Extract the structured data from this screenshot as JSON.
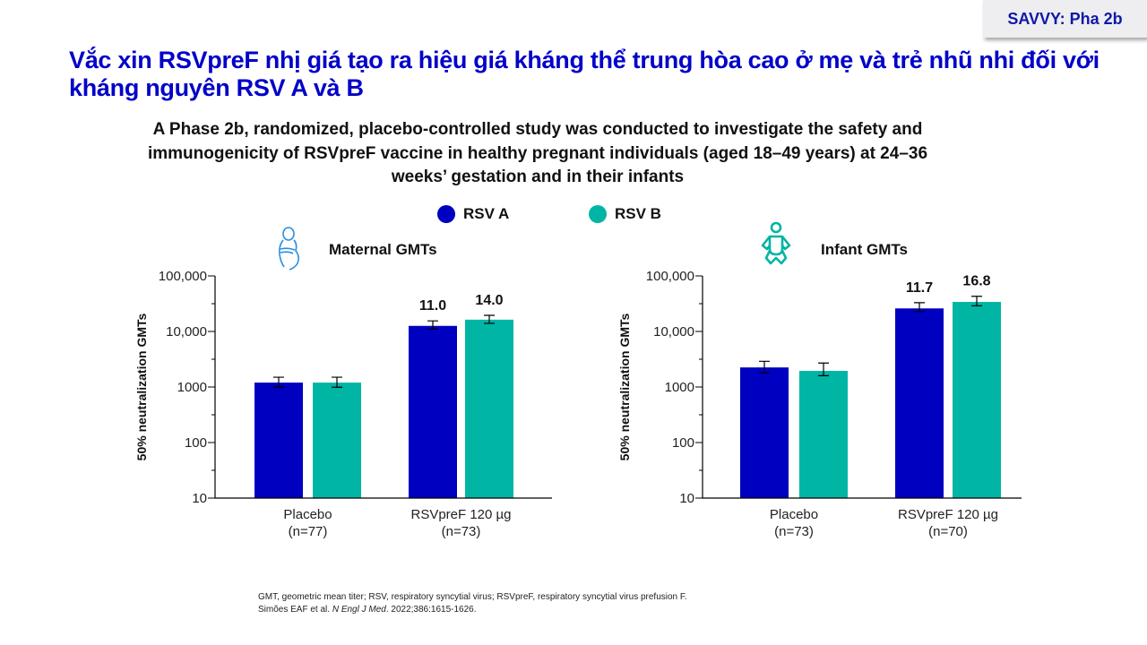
{
  "badge": "SAVVY: Pha 2b",
  "title": "Vắc xin RSVpreF nhị giá tạo ra hiệu giá kháng thể trung hòa cao ở mẹ và trẻ nhũ nhi đối với kháng nguyên RSV A và B",
  "subtitle": "A Phase 2b, randomized, placebo-controlled study was conducted to investigate the safety and immunogenicity of RSVpreF vaccine in healthy pregnant individuals (aged 18–49 years) at 24–36 weeks’ gestation and in their infants",
  "legend": [
    {
      "label": "RSV A",
      "color": "#0000c0"
    },
    {
      "label": "RSV B",
      "color": "#00b5a4"
    }
  ],
  "icons": {
    "maternal": "pregnant-woman-icon",
    "infant": "baby-icon"
  },
  "chart_data": [
    {
      "type": "bar",
      "title": "Maternal GMTs",
      "ylabel": "50% neutralization GMTs",
      "yscale": "log",
      "ylim": [
        10,
        100000
      ],
      "yticks": [
        "10",
        "100",
        "1000",
        "10,000",
        "100,000"
      ],
      "categories": [
        {
          "name": "Placebo",
          "n": "(n=77)"
        },
        {
          "name": "RSVpreF 120 µg",
          "n": "(n=73)"
        }
      ],
      "series": [
        {
          "name": "RSV A",
          "values": [
            1200,
            12600
          ],
          "error_low": [
            1000,
            11000
          ],
          "error_high": [
            1500,
            15500
          ],
          "labels": [
            "",
            "11.0"
          ]
        },
        {
          "name": "RSV B",
          "values": [
            1200,
            16300
          ],
          "error_low": [
            990,
            14000
          ],
          "error_high": [
            1500,
            19500
          ],
          "labels": [
            "",
            "14.0"
          ]
        }
      ]
    },
    {
      "type": "bar",
      "title": "Infant GMTs",
      "ylabel": "50% neutralization GMTs",
      "yscale": "log",
      "ylim": [
        10,
        100000
      ],
      "yticks": [
        "10",
        "100",
        "1000",
        "10,000",
        "100,000"
      ],
      "categories": [
        {
          "name": "Placebo",
          "n": "(n=73)"
        },
        {
          "name": "RSVpreF 120 µg",
          "n": "(n=70)"
        }
      ],
      "series": [
        {
          "name": "RSV A",
          "values": [
            2250,
            26000
          ],
          "error_low": [
            1800,
            22800
          ],
          "error_high": [
            2900,
            33000
          ],
          "labels": [
            "",
            "11.7"
          ]
        },
        {
          "name": "RSV B",
          "values": [
            1950,
            34000
          ],
          "error_low": [
            1600,
            29000
          ],
          "error_high": [
            2700,
            43000
          ],
          "labels": [
            "",
            "16.8"
          ]
        }
      ]
    }
  ],
  "footnote": {
    "line1": "GMT, geometric mean titer; RSV, respiratory syncytial virus; RSVpreF, respiratory syncytial virus prefusion F.",
    "authors": "Simões EAF et al. ",
    "journal": "N Engl J Med",
    "citation": ". 2022;386:1615-1626."
  }
}
